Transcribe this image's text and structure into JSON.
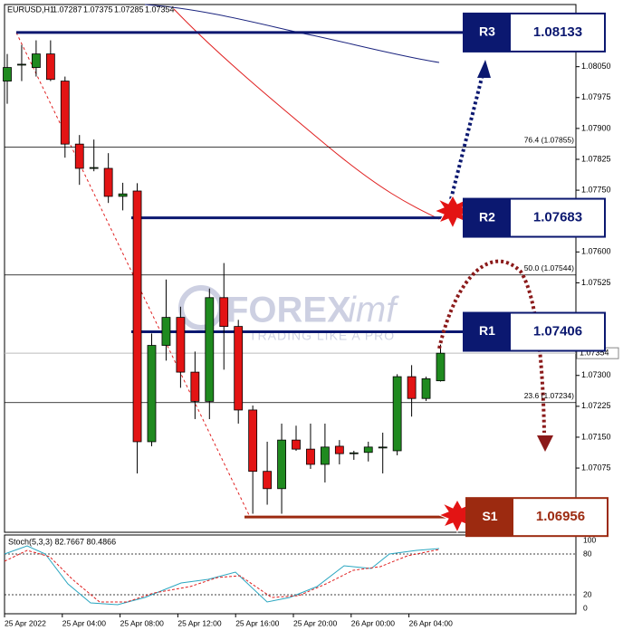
{
  "chart_data": {
    "type": "candlestick",
    "title": "EURUSD,H1",
    "header_ohlc": [
      1.07287,
      1.07375,
      1.07285,
      1.07354
    ],
    "categories": [
      "25 Apr 2022",
      null,
      null,
      null,
      "25 Apr 04:00",
      null,
      null,
      null,
      "25 Apr 08:00",
      null,
      null,
      null,
      "25 Apr 12:00",
      null,
      null,
      null,
      "25 Apr 16:00",
      null,
      null,
      null,
      "25 Apr 20:00",
      null,
      null,
      null,
      "26 Apr 00:00",
      null,
      null,
      null,
      "26 Apr 04:00",
      null,
      null
    ],
    "open": [
      1.08015,
      1.08054,
      1.08048,
      1.08081,
      1.08015,
      1.07862,
      1.07803,
      1.07803,
      1.07735,
      1.07748,
      1.07139,
      1.07373,
      1.07441,
      1.07308,
      1.07237,
      1.07489,
      1.07419,
      1.07216,
      1.07067,
      1.07025,
      1.07143,
      1.07121,
      1.07084,
      1.07128,
      1.0711,
      1.07113,
      1.07124,
      1.07117,
      1.07297,
      1.07244,
      1.07287
    ],
    "high": [
      1.08081,
      1.08103,
      1.08114,
      1.08114,
      1.08026,
      1.07884,
      1.07873,
      1.0784,
      1.07768,
      1.07767,
      1.07402,
      1.07533,
      1.07467,
      1.07358,
      1.07511,
      1.07573,
      1.07435,
      1.07227,
      1.07139,
      1.07183,
      1.07178,
      1.07183,
      1.07183,
      1.07143,
      1.07117,
      1.07139,
      1.07161,
      1.07303,
      1.07325,
      1.07297,
      1.07375
    ],
    "low": [
      1.0796,
      1.08015,
      1.08026,
      1.08015,
      1.07829,
      1.07763,
      1.07796,
      1.07719,
      1.07701,
      1.07062,
      1.07128,
      1.07336,
      1.0727,
      1.07194,
      1.07194,
      1.07314,
      1.07183,
      1.06964,
      1.06986,
      1.06964,
      1.07117,
      1.07073,
      1.0704,
      1.07084,
      1.07095,
      1.07091,
      1.07062,
      1.07106,
      1.072,
      1.07238,
      1.07285
    ],
    "close": [
      1.08048,
      1.08056,
      1.08081,
      1.08019,
      1.07862,
      1.07803,
      1.07805,
      1.07735,
      1.07741,
      1.07139,
      1.07373,
      1.07441,
      1.07308,
      1.07237,
      1.07489,
      1.07419,
      1.07216,
      1.07067,
      1.07025,
      1.07143,
      1.07121,
      1.07084,
      1.07126,
      1.0711,
      1.07112,
      1.07126,
      1.07126,
      1.07297,
      1.07244,
      1.07292,
      1.07354
    ],
    "up_color": "#1f8a1f",
    "down_color": "#e31414",
    "ylim": [
      1.06919,
      1.08201
    ],
    "yticks": [
      {
        "value": 1.0805,
        "label": "1.08050"
      },
      1.07975,
      {
        "value": 1.079,
        "label": "1.07900"
      },
      1.07825,
      {
        "value": 1.0775,
        "label": "1.07750"
      },
      {
        "value": 1.076,
        "label": "1.07600"
      },
      1.07525,
      {
        "value": 1.073,
        "label": "1.07300"
      },
      1.07225,
      {
        "value": 1.0715,
        "label": "1.07150"
      },
      1.07075
    ],
    "last_price": 1.07354,
    "fib_levels": [
      {
        "label": "76.4 (1.07855)",
        "value": 1.07855
      },
      {
        "label": "50.0 (1.07544)",
        "value": 1.07544
      },
      {
        "label": "23.6 (1.07234)",
        "value": 1.07234
      }
    ],
    "levels": [
      {
        "name": "R3",
        "value": 1.08133,
        "color": "#0b1870"
      },
      {
        "name": "R2",
        "value": 1.07683,
        "color": "#0b1870"
      },
      {
        "name": "R1",
        "value": 1.07406,
        "color": "#0b1870"
      },
      {
        "name": "S1",
        "value": 1.06956,
        "color": "#9c2a10"
      }
    ],
    "stoch": {
      "label": "Stoch(5,3,3) 82.7667 80.4866",
      "ylim": [
        0,
        100
      ],
      "yticks": [
        100,
        80,
        20,
        0
      ]
    },
    "watermark": {
      "brand": "FOREX",
      "brand2": "imf",
      "tagline": "TRADING LIKE A PRO"
    }
  }
}
